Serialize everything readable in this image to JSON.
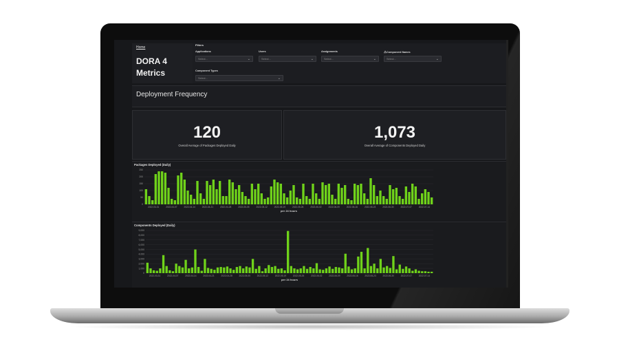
{
  "dashboard": {
    "home_link": "Home",
    "title": "DORA 4 Metrics",
    "section_title": "Deployment Frequency"
  },
  "filters": {
    "label": "Filters",
    "items": [
      {
        "label": "Applications",
        "placeholder": "Select..."
      },
      {
        "label": "Users",
        "placeholder": "Select..."
      },
      {
        "label": "Assignments",
        "placeholder": "Select..."
      },
      {
        "label": "Component Names",
        "placeholder": "Select...",
        "icon": "warning-icon"
      },
      {
        "label": "Component Types",
        "placeholder": "Select..."
      }
    ]
  },
  "stats": [
    {
      "value": "120",
      "caption": "Overall Average of Packages Deployed Daily"
    },
    {
      "value": "1,073",
      "caption": "Overall Average of Components Deployed Daily"
    }
  ],
  "colors": {
    "bar": "#6fd21a",
    "background": "#17181b",
    "panel": "#1e1f23"
  },
  "chart_data": [
    {
      "type": "bar",
      "title": "Packages Deployed (Daily)",
      "xlabel": "per 24 hours",
      "ylabel": "",
      "ylim": [
        0,
        250
      ],
      "y_ticks": [
        0,
        50,
        100,
        150,
        200,
        250
      ],
      "x_tick_labels": [
        "2022-03-31",
        "2022-04-07",
        "2022-04-14",
        "2022-04-21",
        "2022-04-28",
        "2022-05-05",
        "2022-05-12",
        "2022-05-19",
        "2022-05-26",
        "2022-06-02",
        "2022-06-09",
        "2022-06-16",
        "2022-06-23",
        "2022-06-30",
        "2022-07-07",
        "2022-07-14"
      ],
      "values": [
        110,
        60,
        30,
        220,
        240,
        240,
        230,
        120,
        40,
        30,
        210,
        230,
        180,
        100,
        70,
        40,
        170,
        80,
        40,
        170,
        140,
        180,
        110,
        170,
        60,
        60,
        180,
        160,
        110,
        140,
        90,
        60,
        40,
        150,
        110,
        150,
        80,
        40,
        50,
        130,
        180,
        160,
        150,
        80,
        50,
        100,
        140,
        50,
        40,
        150,
        60,
        40,
        150,
        80,
        40,
        160,
        140,
        150,
        70,
        40,
        150,
        120,
        140,
        40,
        30,
        150,
        140,
        150,
        80,
        40,
        190,
        140,
        60,
        100,
        60,
        40,
        140,
        110,
        120,
        60,
        40,
        130,
        90,
        150,
        130,
        40,
        80,
        110,
        90,
        50
      ]
    },
    {
      "type": "bar",
      "title": "Components Deployed (Daily)",
      "xlabel": "per 24 hours",
      "ylabel": "",
      "ylim": [
        0,
        9000
      ],
      "y_ticks": [
        0,
        1000,
        2000,
        3000,
        4000,
        5000,
        6000,
        7000,
        8000,
        9000
      ],
      "y_tick_labels": [
        "0",
        "1,000",
        "2,000",
        "3,000",
        "4,000",
        "5,000",
        "6,000",
        "7,000",
        "8,000",
        "9,000"
      ],
      "x_tick_labels": [
        "2022-03-31",
        "2022-04-07",
        "2022-04-14",
        "2022-04-21",
        "2022-04-28",
        "2022-05-05",
        "2022-05-12",
        "2022-05-19",
        "2022-05-26",
        "2022-06-02",
        "2022-06-09",
        "2022-06-16",
        "2022-06-23",
        "2022-06-30",
        "2022-07-07",
        "2022-07-14"
      ],
      "values": [
        2200,
        1000,
        600,
        500,
        1000,
        3800,
        1500,
        600,
        400,
        2000,
        1500,
        1200,
        2800,
        1000,
        1200,
        5000,
        1300,
        500,
        3000,
        1100,
        900,
        700,
        1200,
        1300,
        1200,
        1400,
        1000,
        700,
        1300,
        1500,
        1000,
        1400,
        1200,
        3000,
        900,
        1500,
        400,
        1000,
        1700,
        1300,
        1500,
        900,
        1000,
        600,
        8900,
        1500,
        1000,
        800,
        1000,
        1500,
        900,
        1300,
        1000,
        2100,
        800,
        700,
        1000,
        1400,
        900,
        1300,
        1200,
        1000,
        4100,
        1400,
        800,
        1000,
        3500,
        4500,
        1000,
        5300,
        1500,
        2000,
        1000,
        3000,
        1200,
        1500,
        1100,
        3600,
        800,
        1800,
        900,
        1400,
        1000,
        500,
        800,
        500,
        400,
        400,
        300,
        300
      ]
    }
  ]
}
